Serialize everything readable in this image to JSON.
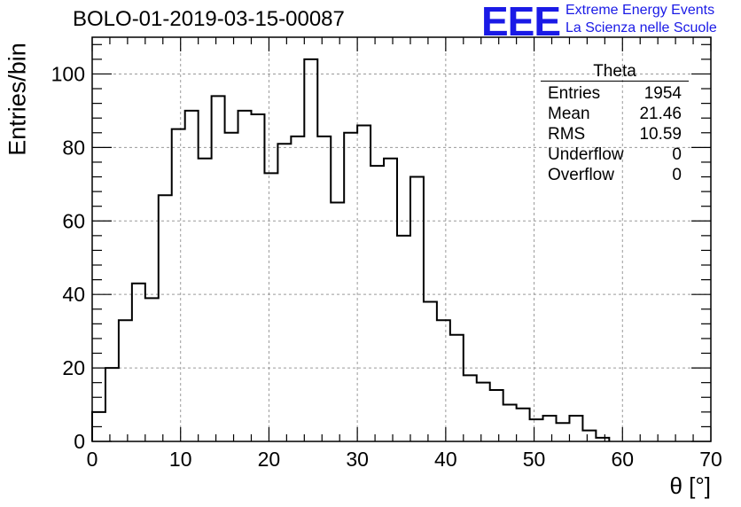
{
  "header": {
    "title": "BOLO-01-2019-03-15-00087",
    "logo": "EEE",
    "logo_line1": "Extreme Energy Events",
    "logo_line2": "La Scienza nelle Scuole"
  },
  "colors": {
    "logo": "#1a1ae6",
    "line": "#000000",
    "grid": "#9a9a9a"
  },
  "stats": {
    "title": "Theta",
    "rows": [
      {
        "label": "Entries",
        "value": "1954"
      },
      {
        "label": "Mean",
        "value": "21.46"
      },
      {
        "label": "RMS",
        "value": "10.59"
      },
      {
        "label": "Underflow",
        "value": "0"
      },
      {
        "label": "Overflow",
        "value": "0"
      }
    ]
  },
  "chart_data": {
    "type": "histogram",
    "title": "BOLO-01-2019-03-15-00087",
    "xlabel": "θ [°]",
    "ylabel": "Entries/bin",
    "xlim": [
      0,
      70
    ],
    "ylim": [
      0,
      110
    ],
    "bin_width": 1.5,
    "grid": true,
    "xticks": [
      0,
      10,
      20,
      30,
      40,
      50,
      60,
      70
    ],
    "yticks": [
      0,
      20,
      40,
      60,
      80,
      100
    ],
    "bins": [
      {
        "x0": 0,
        "count": 8
      },
      {
        "x0": 1.5,
        "count": 20
      },
      {
        "x0": 3,
        "count": 33
      },
      {
        "x0": 4.5,
        "count": 43
      },
      {
        "x0": 6,
        "count": 39
      },
      {
        "x0": 7.5,
        "count": 67
      },
      {
        "x0": 9,
        "count": 85
      },
      {
        "x0": 10.5,
        "count": 90
      },
      {
        "x0": 12,
        "count": 77
      },
      {
        "x0": 13.5,
        "count": 94
      },
      {
        "x0": 15,
        "count": 84
      },
      {
        "x0": 16.5,
        "count": 90
      },
      {
        "x0": 18,
        "count": 89
      },
      {
        "x0": 19.5,
        "count": 73
      },
      {
        "x0": 21,
        "count": 81
      },
      {
        "x0": 22.5,
        "count": 83
      },
      {
        "x0": 24,
        "count": 104
      },
      {
        "x0": 25.5,
        "count": 83
      },
      {
        "x0": 27,
        "count": 65
      },
      {
        "x0": 28.5,
        "count": 84
      },
      {
        "x0": 30,
        "count": 86
      },
      {
        "x0": 31.5,
        "count": 75
      },
      {
        "x0": 33,
        "count": 77
      },
      {
        "x0": 34.5,
        "count": 56
      },
      {
        "x0": 36,
        "count": 72
      },
      {
        "x0": 37.5,
        "count": 38
      },
      {
        "x0": 39,
        "count": 33
      },
      {
        "x0": 40.5,
        "count": 29
      },
      {
        "x0": 42,
        "count": 18
      },
      {
        "x0": 43.5,
        "count": 16
      },
      {
        "x0": 45,
        "count": 14
      },
      {
        "x0": 46.5,
        "count": 10
      },
      {
        "x0": 48,
        "count": 9
      },
      {
        "x0": 49.5,
        "count": 6
      },
      {
        "x0": 51,
        "count": 7
      },
      {
        "x0": 52.5,
        "count": 5
      },
      {
        "x0": 54,
        "count": 7
      },
      {
        "x0": 55.5,
        "count": 3
      },
      {
        "x0": 57,
        "count": 1
      }
    ]
  }
}
